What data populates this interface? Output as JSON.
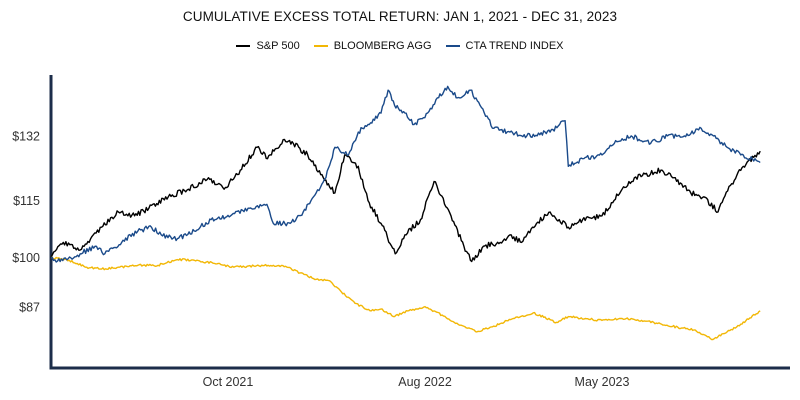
{
  "chart_data": {
    "type": "line",
    "title": "CUMULATIVE EXCESS TOTAL RETURN: JAN 1, 2021 - DEC 31, 2023",
    "xlabel": "",
    "ylabel": "",
    "ylim": [
      71,
      148
    ],
    "xlim": [
      "2021-01-01",
      "2024-02-15"
    ],
    "grid": false,
    "legend_position": "top-center",
    "y_ticks": [
      {
        "value": 132,
        "label": "$132"
      },
      {
        "value": 115,
        "label": "$115"
      },
      {
        "value": 100,
        "label": "$100"
      },
      {
        "value": 87,
        "label": "$87"
      }
    ],
    "x_ticks": [
      {
        "date": "2021-10-01",
        "label": "Oct 2021"
      },
      {
        "date": "2022-08-01",
        "label": "Aug 2022"
      },
      {
        "date": "2023-05-01",
        "label": "May 2023"
      }
    ],
    "series": [
      {
        "name": "S&P 500",
        "color": "#000000",
        "points": [
          [
            "2021-01-01",
            100
          ],
          [
            "2021-01-20",
            104
          ],
          [
            "2021-02-15",
            102
          ],
          [
            "2021-03-01",
            104
          ],
          [
            "2021-03-20",
            108
          ],
          [
            "2021-04-15",
            112
          ],
          [
            "2021-05-10",
            111
          ],
          [
            "2021-06-01",
            113
          ],
          [
            "2021-07-01",
            116
          ],
          [
            "2021-08-01",
            118
          ],
          [
            "2021-09-01",
            121
          ],
          [
            "2021-09-25",
            118
          ],
          [
            "2021-10-20",
            123
          ],
          [
            "2021-11-15",
            129
          ],
          [
            "2021-12-01",
            126
          ],
          [
            "2021-12-25",
            131
          ],
          [
            "2022-01-10",
            130
          ],
          [
            "2022-02-01",
            127
          ],
          [
            "2022-02-25",
            121
          ],
          [
            "2022-03-15",
            117
          ],
          [
            "2022-03-30",
            127
          ],
          [
            "2022-04-20",
            124
          ],
          [
            "2022-05-05",
            115
          ],
          [
            "2022-05-25",
            109
          ],
          [
            "2022-06-16",
            101
          ],
          [
            "2022-07-01",
            106
          ],
          [
            "2022-07-25",
            110
          ],
          [
            "2022-08-15",
            120
          ],
          [
            "2022-09-10",
            111
          ],
          [
            "2022-09-30",
            103
          ],
          [
            "2022-10-12",
            99
          ],
          [
            "2022-10-30",
            103
          ],
          [
            "2022-11-25",
            104
          ],
          [
            "2022-12-10",
            106
          ],
          [
            "2022-12-28",
            104
          ],
          [
            "2023-01-20",
            109
          ],
          [
            "2023-02-10",
            112
          ],
          [
            "2023-03-10",
            108
          ],
          [
            "2023-04-01",
            110
          ],
          [
            "2023-05-01",
            111
          ],
          [
            "2023-06-01",
            118
          ],
          [
            "2023-06-20",
            121
          ],
          [
            "2023-07-31",
            123
          ],
          [
            "2023-08-20",
            121
          ],
          [
            "2023-09-15",
            117
          ],
          [
            "2023-10-05",
            116
          ],
          [
            "2023-10-27",
            112
          ],
          [
            "2023-11-15",
            119
          ],
          [
            "2023-12-05",
            124
          ],
          [
            "2023-12-31",
            128
          ]
        ]
      },
      {
        "name": "BLOOMBERG AGG",
        "color": "#f2b705",
        "points": [
          [
            "2021-01-01",
            100
          ],
          [
            "2021-01-25",
            99.5
          ],
          [
            "2021-02-25",
            97.5
          ],
          [
            "2021-03-20",
            97
          ],
          [
            "2021-04-15",
            97.5
          ],
          [
            "2021-05-15",
            98
          ],
          [
            "2021-06-15",
            98
          ],
          [
            "2021-07-15",
            99.5
          ],
          [
            "2021-08-10",
            99.3
          ],
          [
            "2021-09-10",
            98.5
          ],
          [
            "2021-10-10",
            97.5
          ],
          [
            "2021-11-10",
            97.8
          ],
          [
            "2021-12-10",
            98
          ],
          [
            "2021-12-31",
            97.5
          ],
          [
            "2022-01-20",
            96
          ],
          [
            "2022-02-10",
            94.5
          ],
          [
            "2022-03-05",
            94
          ],
          [
            "2022-03-25",
            91
          ],
          [
            "2022-04-15",
            88
          ],
          [
            "2022-05-10",
            86
          ],
          [
            "2022-05-25",
            86.5
          ],
          [
            "2022-06-15",
            84.5
          ],
          [
            "2022-07-05",
            86
          ],
          [
            "2022-07-30",
            87
          ],
          [
            "2022-08-15",
            86
          ],
          [
            "2022-09-15",
            83
          ],
          [
            "2022-10-20",
            80.5
          ],
          [
            "2022-11-15",
            82
          ],
          [
            "2022-12-15",
            84
          ],
          [
            "2023-01-15",
            85.5
          ],
          [
            "2023-02-20",
            83
          ],
          [
            "2023-03-10",
            84.5
          ],
          [
            "2023-04-05",
            84
          ],
          [
            "2023-05-01",
            83.5
          ],
          [
            "2023-06-01",
            84
          ],
          [
            "2023-07-01",
            83.5
          ],
          [
            "2023-08-01",
            82.5
          ],
          [
            "2023-09-01",
            81.5
          ],
          [
            "2023-09-20",
            81
          ],
          [
            "2023-10-19",
            78.5
          ],
          [
            "2023-11-10",
            80.5
          ],
          [
            "2023-12-01",
            82.5
          ],
          [
            "2023-12-31",
            86
          ]
        ]
      },
      {
        "name": "CTA TREND INDEX",
        "color": "#1a4a8a",
        "points": [
          [
            "2021-01-01",
            100
          ],
          [
            "2021-01-15",
            99
          ],
          [
            "2021-02-15",
            101
          ],
          [
            "2021-03-10",
            103
          ],
          [
            "2021-03-25",
            101
          ],
          [
            "2021-04-20",
            104
          ],
          [
            "2021-05-15",
            107
          ],
          [
            "2021-06-05",
            108
          ],
          [
            "2021-06-20",
            106
          ],
          [
            "2021-07-15",
            105
          ],
          [
            "2021-08-10",
            107
          ],
          [
            "2021-09-05",
            110
          ],
          [
            "2021-10-05",
            111
          ],
          [
            "2021-11-01",
            113
          ],
          [
            "2021-11-30",
            114
          ],
          [
            "2021-12-10",
            109
          ],
          [
            "2022-01-05",
            109
          ],
          [
            "2022-01-25",
            112
          ],
          [
            "2022-02-10",
            116
          ],
          [
            "2022-03-01",
            121
          ],
          [
            "2022-03-15",
            129
          ],
          [
            "2022-04-05",
            127
          ],
          [
            "2022-04-20",
            133
          ],
          [
            "2022-05-05",
            135
          ],
          [
            "2022-05-25",
            138
          ],
          [
            "2022-06-05",
            144
          ],
          [
            "2022-06-15",
            140
          ],
          [
            "2022-07-01",
            138
          ],
          [
            "2022-07-15",
            135
          ],
          [
            "2022-08-05",
            138
          ],
          [
            "2022-08-20",
            142
          ],
          [
            "2022-09-05",
            145
          ],
          [
            "2022-09-20",
            142
          ],
          [
            "2022-10-10",
            144
          ],
          [
            "2022-10-25",
            140
          ],
          [
            "2022-11-15",
            134
          ],
          [
            "2022-12-10",
            133
          ],
          [
            "2023-01-05",
            132
          ],
          [
            "2023-02-10",
            133
          ],
          [
            "2023-03-05",
            136
          ],
          [
            "2023-03-10",
            124
          ],
          [
            "2023-04-01",
            126
          ],
          [
            "2023-05-01",
            127
          ],
          [
            "2023-05-20",
            130
          ],
          [
            "2023-06-15",
            132
          ],
          [
            "2023-07-15",
            130
          ],
          [
            "2023-08-10",
            132
          ],
          [
            "2023-09-05",
            132
          ],
          [
            "2023-10-01",
            134
          ],
          [
            "2023-10-20",
            132
          ],
          [
            "2023-11-10",
            129
          ],
          [
            "2023-12-01",
            127
          ],
          [
            "2023-12-31",
            125
          ]
        ]
      }
    ]
  }
}
